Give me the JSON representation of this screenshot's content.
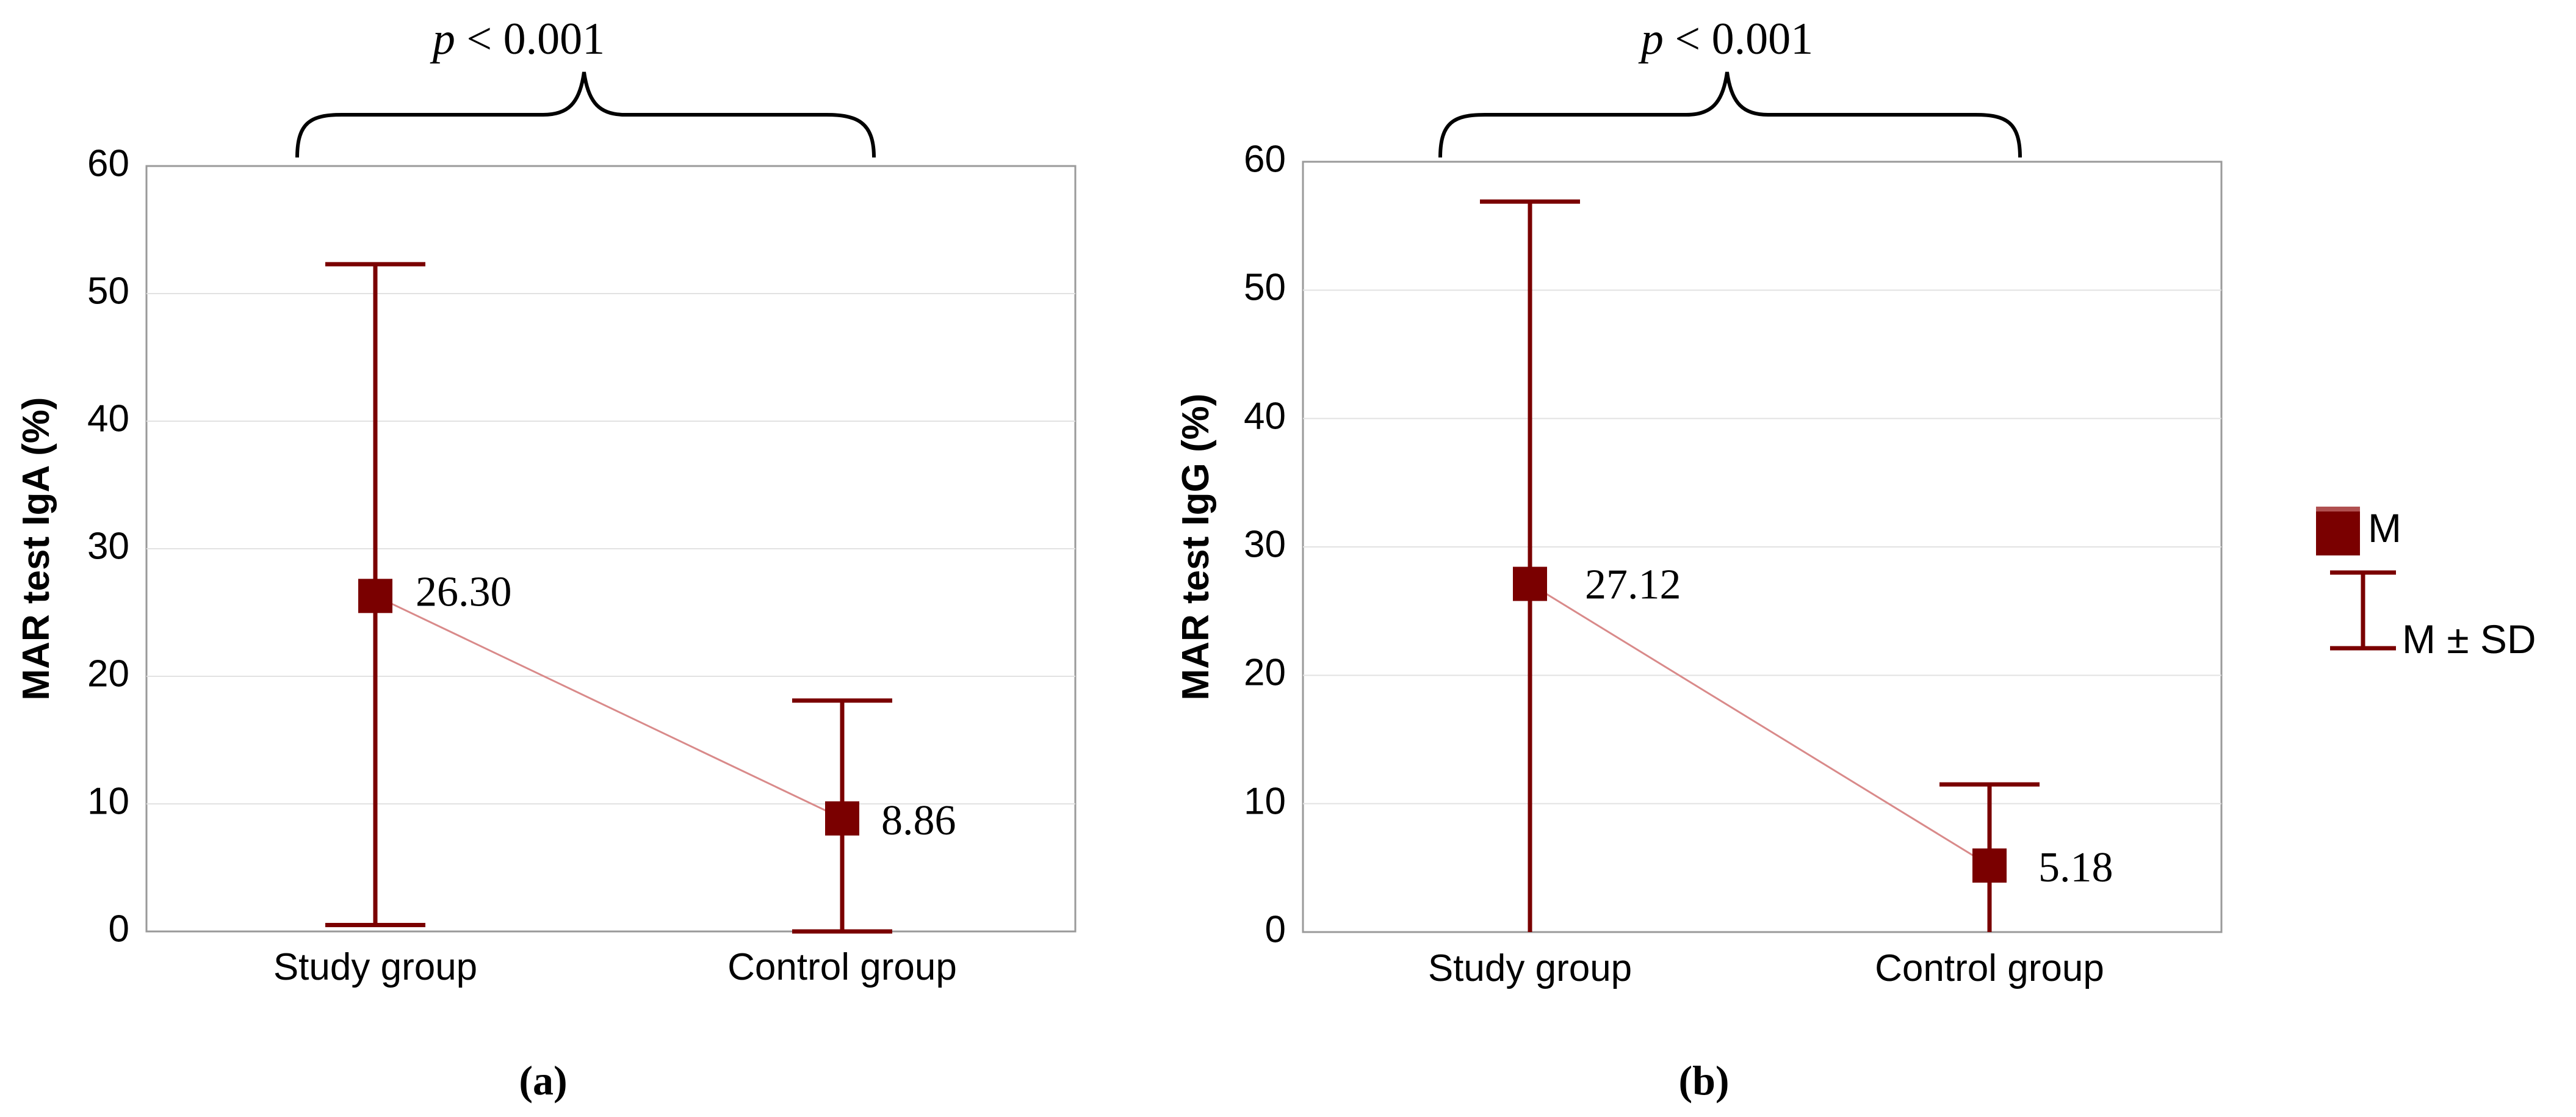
{
  "figure": {
    "legend": {
      "mean_label": "M",
      "sd_label": "M ± SD"
    }
  },
  "colors": {
    "marker": "#7a0000",
    "connector": "#d98a8a",
    "grid": "#e2e2e2",
    "frame": "#9a9a9a"
  },
  "chart_data": [
    {
      "type": "errorbar",
      "panel_label": "(a)",
      "ylabel": "MAR test IgA (%)",
      "categories": [
        "Study group",
        "Control group"
      ],
      "mean": [
        26.3,
        8.86
      ],
      "mean_labels": [
        "26.30",
        "8.86"
      ],
      "sd_upper": [
        52.3,
        18.1
      ],
      "sd_lower": [
        0.5,
        0.0
      ],
      "ylim": [
        0,
        60
      ],
      "yticks": [
        "0",
        "10",
        "20",
        "30",
        "40",
        "50",
        "60"
      ],
      "grid": true,
      "annotation": {
        "italic": "p",
        "text": " < 0.001"
      }
    },
    {
      "type": "errorbar",
      "panel_label": "(b)",
      "ylabel": "MAR test IgG (%)",
      "categories": [
        "Study group",
        "Control group"
      ],
      "mean": [
        27.12,
        5.18
      ],
      "mean_labels": [
        "27.12",
        "5.18"
      ],
      "sd_upper": [
        56.9,
        11.5
      ],
      "sd_lower": [
        0.0,
        0.0
      ],
      "ylim": [
        0,
        60
      ],
      "yticks": [
        "0",
        "10",
        "20",
        "30",
        "40",
        "50",
        "60"
      ],
      "grid": true,
      "annotation": {
        "italic": "p",
        "text": " < 0.001"
      }
    }
  ]
}
